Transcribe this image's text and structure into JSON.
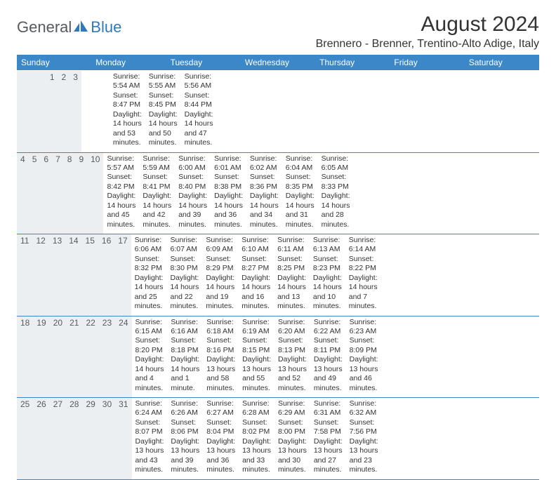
{
  "logo": {
    "general": "General",
    "blue": "Blue"
  },
  "title": "August 2024",
  "location": "Brennero - Brenner, Trentino-Alto Adige, Italy",
  "colors": {
    "header_bg": "#3b87c8",
    "header_text": "#ffffff",
    "daynum_bg": "#eceff1",
    "border": "#3b87c8",
    "body_text": "#333333",
    "logo_gray": "#555b60",
    "logo_blue": "#2f79bd"
  },
  "weekdays": [
    "Sunday",
    "Monday",
    "Tuesday",
    "Wednesday",
    "Thursday",
    "Friday",
    "Saturday"
  ],
  "weeks": [
    [
      {
        "n": "",
        "lines": []
      },
      {
        "n": "",
        "lines": []
      },
      {
        "n": "",
        "lines": []
      },
      {
        "n": "",
        "lines": []
      },
      {
        "n": "1",
        "lines": [
          "Sunrise: 5:54 AM",
          "Sunset: 8:47 PM",
          "Daylight: 14 hours and 53 minutes."
        ]
      },
      {
        "n": "2",
        "lines": [
          "Sunrise: 5:55 AM",
          "Sunset: 8:45 PM",
          "Daylight: 14 hours and 50 minutes."
        ]
      },
      {
        "n": "3",
        "lines": [
          "Sunrise: 5:56 AM",
          "Sunset: 8:44 PM",
          "Daylight: 14 hours and 47 minutes."
        ]
      }
    ],
    [
      {
        "n": "4",
        "lines": [
          "Sunrise: 5:57 AM",
          "Sunset: 8:42 PM",
          "Daylight: 14 hours and 45 minutes."
        ]
      },
      {
        "n": "5",
        "lines": [
          "Sunrise: 5:59 AM",
          "Sunset: 8:41 PM",
          "Daylight: 14 hours and 42 minutes."
        ]
      },
      {
        "n": "6",
        "lines": [
          "Sunrise: 6:00 AM",
          "Sunset: 8:40 PM",
          "Daylight: 14 hours and 39 minutes."
        ]
      },
      {
        "n": "7",
        "lines": [
          "Sunrise: 6:01 AM",
          "Sunset: 8:38 PM",
          "Daylight: 14 hours and 36 minutes."
        ]
      },
      {
        "n": "8",
        "lines": [
          "Sunrise: 6:02 AM",
          "Sunset: 8:36 PM",
          "Daylight: 14 hours and 34 minutes."
        ]
      },
      {
        "n": "9",
        "lines": [
          "Sunrise: 6:04 AM",
          "Sunset: 8:35 PM",
          "Daylight: 14 hours and 31 minutes."
        ]
      },
      {
        "n": "10",
        "lines": [
          "Sunrise: 6:05 AM",
          "Sunset: 8:33 PM",
          "Daylight: 14 hours and 28 minutes."
        ]
      }
    ],
    [
      {
        "n": "11",
        "lines": [
          "Sunrise: 6:06 AM",
          "Sunset: 8:32 PM",
          "Daylight: 14 hours and 25 minutes."
        ]
      },
      {
        "n": "12",
        "lines": [
          "Sunrise: 6:07 AM",
          "Sunset: 8:30 PM",
          "Daylight: 14 hours and 22 minutes."
        ]
      },
      {
        "n": "13",
        "lines": [
          "Sunrise: 6:09 AM",
          "Sunset: 8:29 PM",
          "Daylight: 14 hours and 19 minutes."
        ]
      },
      {
        "n": "14",
        "lines": [
          "Sunrise: 6:10 AM",
          "Sunset: 8:27 PM",
          "Daylight: 14 hours and 16 minutes."
        ]
      },
      {
        "n": "15",
        "lines": [
          "Sunrise: 6:11 AM",
          "Sunset: 8:25 PM",
          "Daylight: 14 hours and 13 minutes."
        ]
      },
      {
        "n": "16",
        "lines": [
          "Sunrise: 6:13 AM",
          "Sunset: 8:23 PM",
          "Daylight: 14 hours and 10 minutes."
        ]
      },
      {
        "n": "17",
        "lines": [
          "Sunrise: 6:14 AM",
          "Sunset: 8:22 PM",
          "Daylight: 14 hours and 7 minutes."
        ]
      }
    ],
    [
      {
        "n": "18",
        "lines": [
          "Sunrise: 6:15 AM",
          "Sunset: 8:20 PM",
          "Daylight: 14 hours and 4 minutes."
        ]
      },
      {
        "n": "19",
        "lines": [
          "Sunrise: 6:16 AM",
          "Sunset: 8:18 PM",
          "Daylight: 14 hours and 1 minute."
        ]
      },
      {
        "n": "20",
        "lines": [
          "Sunrise: 6:18 AM",
          "Sunset: 8:16 PM",
          "Daylight: 13 hours and 58 minutes."
        ]
      },
      {
        "n": "21",
        "lines": [
          "Sunrise: 6:19 AM",
          "Sunset: 8:15 PM",
          "Daylight: 13 hours and 55 minutes."
        ]
      },
      {
        "n": "22",
        "lines": [
          "Sunrise: 6:20 AM",
          "Sunset: 8:13 PM",
          "Daylight: 13 hours and 52 minutes."
        ]
      },
      {
        "n": "23",
        "lines": [
          "Sunrise: 6:22 AM",
          "Sunset: 8:11 PM",
          "Daylight: 13 hours and 49 minutes."
        ]
      },
      {
        "n": "24",
        "lines": [
          "Sunrise: 6:23 AM",
          "Sunset: 8:09 PM",
          "Daylight: 13 hours and 46 minutes."
        ]
      }
    ],
    [
      {
        "n": "25",
        "lines": [
          "Sunrise: 6:24 AM",
          "Sunset: 8:07 PM",
          "Daylight: 13 hours and 43 minutes."
        ]
      },
      {
        "n": "26",
        "lines": [
          "Sunrise: 6:26 AM",
          "Sunset: 8:06 PM",
          "Daylight: 13 hours and 39 minutes."
        ]
      },
      {
        "n": "27",
        "lines": [
          "Sunrise: 6:27 AM",
          "Sunset: 8:04 PM",
          "Daylight: 13 hours and 36 minutes."
        ]
      },
      {
        "n": "28",
        "lines": [
          "Sunrise: 6:28 AM",
          "Sunset: 8:02 PM",
          "Daylight: 13 hours and 33 minutes."
        ]
      },
      {
        "n": "29",
        "lines": [
          "Sunrise: 6:29 AM",
          "Sunset: 8:00 PM",
          "Daylight: 13 hours and 30 minutes."
        ]
      },
      {
        "n": "30",
        "lines": [
          "Sunrise: 6:31 AM",
          "Sunset: 7:58 PM",
          "Daylight: 13 hours and 27 minutes."
        ]
      },
      {
        "n": "31",
        "lines": [
          "Sunrise: 6:32 AM",
          "Sunset: 7:56 PM",
          "Daylight: 13 hours and 23 minutes."
        ]
      }
    ]
  ]
}
